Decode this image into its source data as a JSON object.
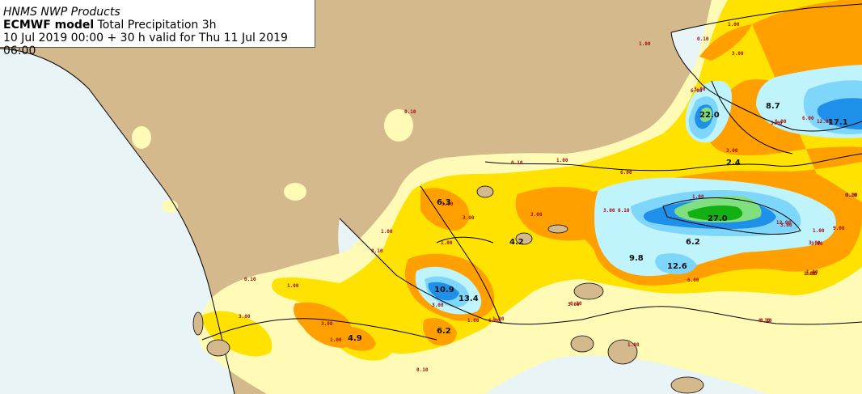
{
  "title": {
    "agency": "HNMS NWP Products",
    "model": "ECMWF model",
    "product": "Total Precipitation 3h",
    "validity": "10 Jul 2019 00:00 + 30 h valid for Thu 11 Jul 2019 06:00"
  },
  "colors": {
    "land": "#d4b98d",
    "sea": "#e9f4f7",
    "p_0_1": "#fffbb6",
    "p_1": "#ffe200",
    "p_3": "#ff9f00",
    "p_6": "#bff4fd",
    "p_10": "#7fd6fb",
    "p_15": "#1e90ea",
    "p_20": "#80e080",
    "p_25": "#12b012"
  },
  "values": [
    {
      "id": "v1",
      "text": "22.0"
    },
    {
      "id": "v2",
      "text": "8.7"
    },
    {
      "id": "v3",
      "text": "17.1"
    },
    {
      "id": "v4",
      "text": "2.4"
    },
    {
      "id": "v5",
      "text": "27.0"
    },
    {
      "id": "v6",
      "text": "6.2"
    },
    {
      "id": "v7",
      "text": "9.8"
    },
    {
      "id": "v8",
      "text": "12.6"
    },
    {
      "id": "v9",
      "text": "6.3"
    },
    {
      "id": "v10",
      "text": "4.2"
    },
    {
      "id": "v11",
      "text": "10.9"
    },
    {
      "id": "v12",
      "text": "13.4"
    },
    {
      "id": "v13",
      "text": "6.2"
    },
    {
      "id": "v14",
      "text": "4.9"
    }
  ],
  "isolines": [
    "0.10",
    "1.00",
    "0.10",
    "3.00",
    "1.00",
    "6.00",
    "3.00",
    "0.10",
    "1.00",
    "6.00",
    "1.00",
    "3.00",
    "3.00",
    "6.00",
    "0.10",
    "1.00",
    "0.10",
    "1.00",
    "1.00",
    "3.00",
    "0.10",
    "3.00",
    "1.00",
    "6.00",
    "3.00",
    "3.00",
    "1.00",
    "1.00",
    "6.00",
    "3.00",
    "3.00",
    "1.00",
    "3.00",
    "0.10",
    "0.10",
    "1.00",
    "3.00",
    "0.10",
    "1.00",
    "3.00",
    "3.00",
    "6.00",
    "1.00",
    "0.10",
    "3.00",
    "12.00",
    "12.00",
    "9.00",
    "3.00",
    "1.00",
    "0.10"
  ]
}
